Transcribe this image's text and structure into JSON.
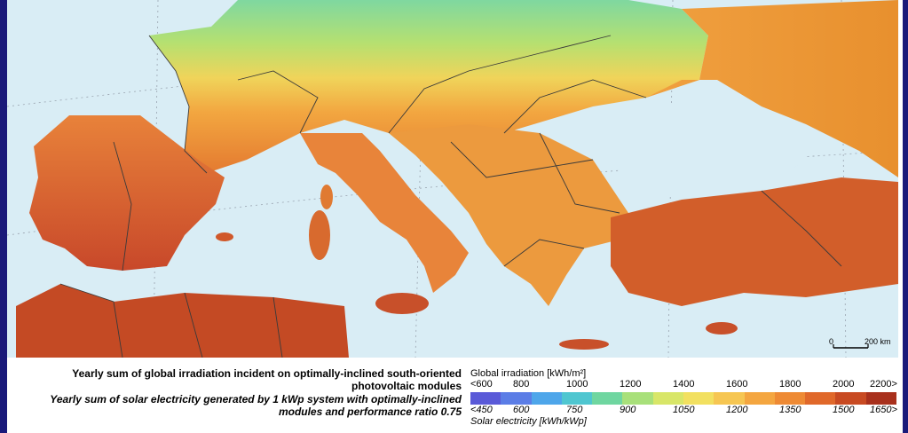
{
  "caption": {
    "line1": "Yearly sum of global irradiation incident on optimally-inclined south-oriented photovoltaic modules",
    "line2": "Yearly sum of solar electricity generated by 1 kWp system with optimally-inclined modules and performance ratio 0.75"
  },
  "legend": {
    "top_title": "Global irradiation [kWh/m²]",
    "bottom_title": "Solar electricity [kWh/kWp]",
    "top_ticks": [
      "<600",
      "800",
      "1000",
      "1200",
      "1400",
      "1600",
      "1800",
      "2000",
      "2200>"
    ],
    "bottom_ticks": [
      "<450",
      "600",
      "750",
      "900",
      "1050",
      "1200",
      "1350",
      "1500",
      "1650>"
    ],
    "colors": [
      "#5a5ad8",
      "#5b7de6",
      "#4ea6ea",
      "#4fc6d0",
      "#6fd6a0",
      "#a8e07a",
      "#d8e668",
      "#f2e060",
      "#f6c652",
      "#f4a640",
      "#ee8a34",
      "#e0682a",
      "#c84a22",
      "#a8301c"
    ]
  },
  "scale": {
    "zero_label": "0",
    "distance_label": "200 km"
  },
  "map": {
    "sea_color": "#d9edf5",
    "border_color": "#3a3a3a"
  }
}
